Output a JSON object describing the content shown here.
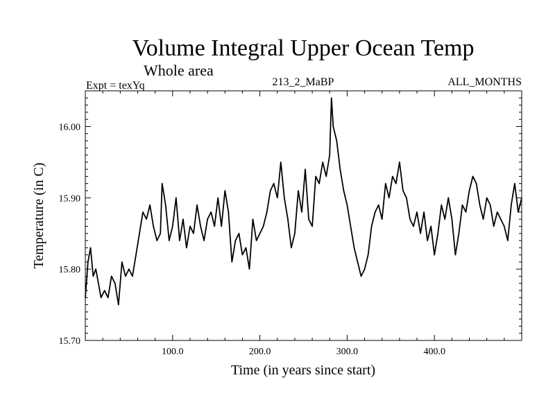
{
  "chart_data": {
    "type": "line",
    "title": "Volume Integral Upper Ocean Temp",
    "subtitle": "Whole area",
    "header_left": "Expt = texYq",
    "header_center": "213_2_MaBP",
    "header_right": "ALL_MONTHS",
    "xlabel": "Time (in years since start)",
    "ylabel": "Temperature (in C)",
    "xlim": [
      0,
      500
    ],
    "ylim": [
      15.7,
      16.05
    ],
    "x_ticks": [
      100,
      200,
      300,
      400
    ],
    "x_tick_labels": [
      "100.0",
      "200.0",
      "300.0",
      "400.0"
    ],
    "y_ticks": [
      15.7,
      15.8,
      15.9,
      16.0
    ],
    "y_tick_labels": [
      "15.70",
      "15.80",
      "15.90",
      "16.00"
    ],
    "grid": false,
    "series": [
      {
        "x": [
          0,
          3,
          6,
          9,
          12,
          15,
          18,
          22,
          26,
          30,
          34,
          38,
          42,
          46,
          50,
          54,
          58,
          62,
          66,
          70,
          74,
          78,
          82,
          86,
          88,
          92,
          96,
          100,
          104,
          108,
          112,
          116,
          120,
          124,
          128,
          132,
          136,
          140,
          144,
          148,
          152,
          156,
          160,
          164,
          168,
          172,
          176,
          180,
          184,
          188,
          192,
          196,
          200,
          204,
          208,
          212,
          216,
          220,
          224,
          228,
          232,
          236,
          240,
          244,
          248,
          252,
          256,
          260,
          264,
          268,
          272,
          276,
          280,
          282,
          284,
          288,
          292,
          296,
          300,
          304,
          308,
          312,
          316,
          320,
          324,
          328,
          332,
          336,
          340,
          344,
          348,
          352,
          356,
          360,
          364,
          368,
          372,
          376,
          380,
          384,
          388,
          392,
          396,
          400,
          404,
          408,
          412,
          416,
          420,
          424,
          428,
          432,
          436,
          440,
          444,
          448,
          452,
          456,
          460,
          464,
          468,
          472,
          476,
          480,
          484,
          488,
          492,
          496,
          500
        ],
        "y": [
          15.76,
          15.81,
          15.83,
          15.79,
          15.8,
          15.78,
          15.76,
          15.77,
          15.76,
          15.79,
          15.78,
          15.75,
          15.81,
          15.79,
          15.8,
          15.79,
          15.82,
          15.85,
          15.88,
          15.87,
          15.89,
          15.86,
          15.84,
          15.85,
          15.92,
          15.89,
          15.84,
          15.86,
          15.9,
          15.84,
          15.87,
          15.83,
          15.86,
          15.85,
          15.89,
          15.86,
          15.84,
          15.87,
          15.88,
          15.86,
          15.9,
          15.86,
          15.91,
          15.88,
          15.81,
          15.84,
          15.85,
          15.82,
          15.83,
          15.8,
          15.87,
          15.84,
          15.85,
          15.86,
          15.88,
          15.91,
          15.92,
          15.9,
          15.95,
          15.9,
          15.87,
          15.83,
          15.85,
          15.91,
          15.88,
          15.94,
          15.87,
          15.86,
          15.93,
          15.92,
          15.95,
          15.93,
          15.96,
          16.04,
          16.0,
          15.98,
          15.94,
          15.91,
          15.89,
          15.86,
          15.83,
          15.81,
          15.79,
          15.8,
          15.82,
          15.86,
          15.88,
          15.89,
          15.87,
          15.92,
          15.9,
          15.93,
          15.92,
          15.95,
          15.91,
          15.9,
          15.87,
          15.86,
          15.88,
          15.85,
          15.88,
          15.84,
          15.86,
          15.82,
          15.85,
          15.89,
          15.87,
          15.9,
          15.87,
          15.82,
          15.85,
          15.89,
          15.88,
          15.91,
          15.93,
          15.92,
          15.89,
          15.87,
          15.9,
          15.89,
          15.86,
          15.88,
          15.87,
          15.86,
          15.84,
          15.89,
          15.92,
          15.88,
          15.9
        ]
      }
    ]
  }
}
